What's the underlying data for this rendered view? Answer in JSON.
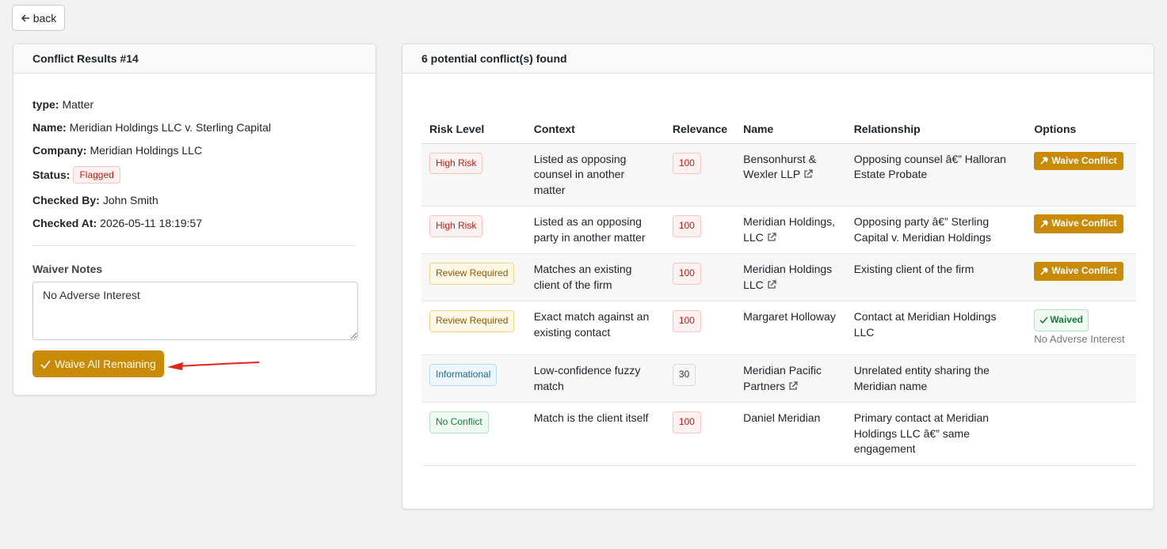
{
  "back": "back",
  "details": {
    "title": "Conflict Results #14",
    "fields": [
      {
        "label": "type:",
        "value": "Matter"
      },
      {
        "label": "Name:",
        "value": "Meridian Holdings LLC v. Sterling Capital"
      },
      {
        "label": "Company:",
        "value": "Meridian Holdings LLC"
      },
      {
        "label": "Status:",
        "value": "Flagged"
      },
      {
        "label": "Checked By:",
        "value": "John Smith"
      },
      {
        "label": "Checked At:",
        "value": "2026-05-11 18:19:57"
      }
    ],
    "waiver_notes_label": "Waiver Notes",
    "waiver_notes": "No Adverse Interest",
    "button": "Waive All Remaining"
  },
  "results": {
    "title": "6 potential conflict(s) found",
    "headers": [
      "Risk Level",
      "Context",
      "Relevance",
      "Name",
      "Relationship",
      "Options"
    ],
    "rows": [
      {
        "risk": "High Risk",
        "context": "Listed as opposing counsel in another matter",
        "relevance": 100,
        "name": "Bensonhurst & Wexler LLP",
        "relationship": "Opposing counsel â€” Halloran Estate Probate",
        "option": "Waive Conflict"
      },
      {
        "risk": "High Risk",
        "context": "Listed as an opposing party in another matter",
        "relevance": 100,
        "name": "Meridian Holdings, LLC",
        "relationship": "Opposing party â€” Sterling Capital v. Meridian Holdings",
        "option": "Waive Conflict"
      },
      {
        "risk": "Review Required",
        "context": "Matches an existing client of the firm",
        "relevance": 100,
        "name": "Meridian Holdings LLC",
        "relationship": "Existing client of the firm",
        "option": "Waive Conflict"
      },
      {
        "risk": "Review Required",
        "context": "Exact match against an existing contact",
        "relevance": 100,
        "name": "Margaret Holloway",
        "relationship": "Contact at Meridian Holdings LLC",
        "option": "Waived",
        "note": "No Adverse Interest"
      },
      {
        "risk": "Informational",
        "context": "Low-confidence fuzzy match",
        "relevance": 30,
        "name": "Meridian Pacific Partners",
        "relationship": "Unrelated entity sharing the Meridian name"
      },
      {
        "risk": "No Conflict",
        "context": "Match is the client itself",
        "relevance": 100,
        "name": "Daniel Meridian",
        "relationship": "Primary contact at Meridian Holdings LLC â€” same engagement"
      }
    ]
  }
}
